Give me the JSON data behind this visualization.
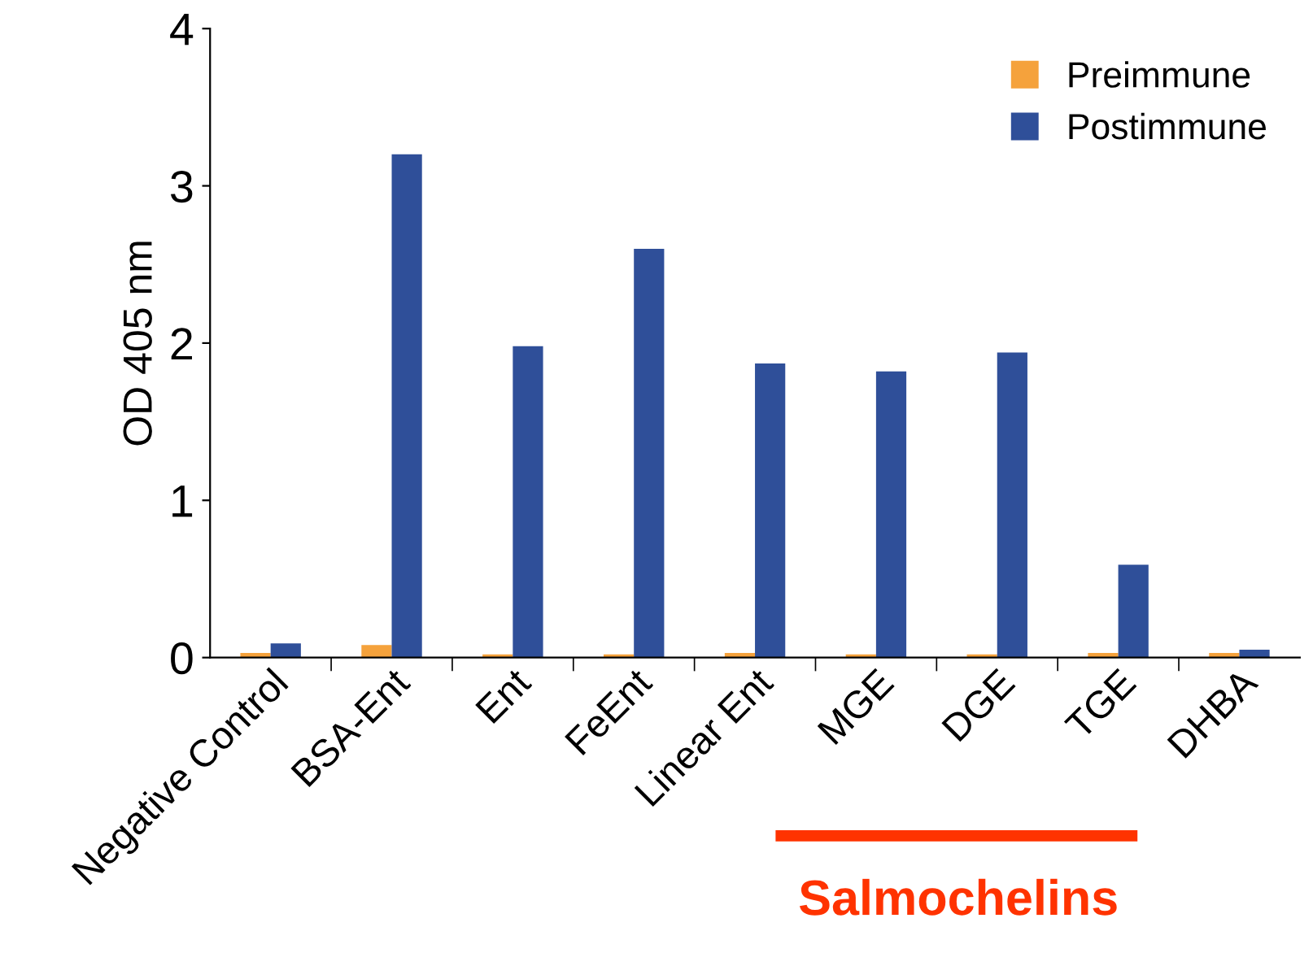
{
  "chart_data": {
    "type": "bar",
    "ylabel": "OD 405 nm",
    "categories": [
      "Negative Control",
      "BSA-Ent",
      "Ent",
      "FeEnt",
      "Linear Ent",
      "MGE",
      "DGE",
      "TGE",
      "DHBA"
    ],
    "series": [
      {
        "name": "Preimmune",
        "color": "#f5a23c",
        "values": [
          0.03,
          0.08,
          0.02,
          0.02,
          0.03,
          0.02,
          0.02,
          0.03,
          0.03
        ]
      },
      {
        "name": "Postimmune",
        "color": "#2f4f99",
        "values": [
          0.09,
          3.2,
          1.98,
          2.6,
          1.87,
          1.82,
          1.94,
          0.59,
          0.05
        ]
      }
    ],
    "ylim": [
      0,
      4
    ],
    "yticks": [
      0,
      1,
      2,
      3,
      4
    ],
    "grid": false,
    "legend": "top right",
    "annotations": [
      "Salmochelins"
    ]
  }
}
